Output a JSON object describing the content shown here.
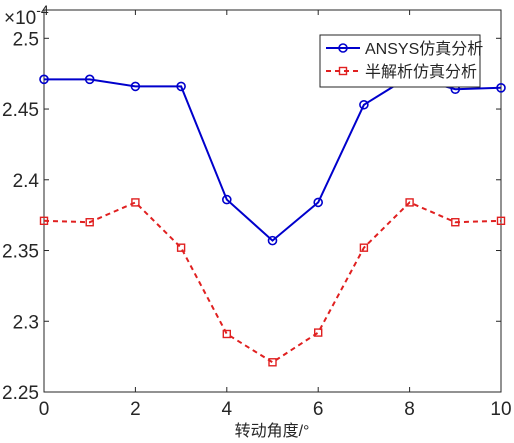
{
  "chart_data": {
    "type": "line",
    "xlabel": "转动角度/°",
    "ylabel": "",
    "exponent_label": "×10",
    "exponent_power": "-4",
    "xlim": [
      0,
      10
    ],
    "ylim": [
      2.25,
      2.52
    ],
    "xticks": [
      "0",
      "2",
      "4",
      "6",
      "8",
      "10"
    ],
    "yticks": [
      "2.25",
      "2.3",
      "2.35",
      "2.4",
      "2.45",
      "2.5"
    ],
    "grid": false,
    "legend_position": "top-right",
    "x": [
      0,
      1,
      2,
      3,
      4,
      5,
      6,
      7,
      8,
      9,
      10
    ],
    "series": [
      {
        "name": "ANSYS仿真分析",
        "color": "#0000cc",
        "line_style": "solid",
        "marker": "circle",
        "values": [
          2.471,
          2.471,
          2.466,
          2.466,
          2.386,
          2.357,
          2.384,
          2.453,
          2.473,
          2.464,
          2.465
        ]
      },
      {
        "name": "半解析仿真分析",
        "color": "#e02020",
        "line_style": "dashed",
        "marker": "square",
        "values": [
          2.371,
          2.37,
          2.384,
          2.352,
          2.291,
          2.271,
          2.292,
          2.352,
          2.384,
          2.37,
          2.371
        ]
      }
    ]
  }
}
